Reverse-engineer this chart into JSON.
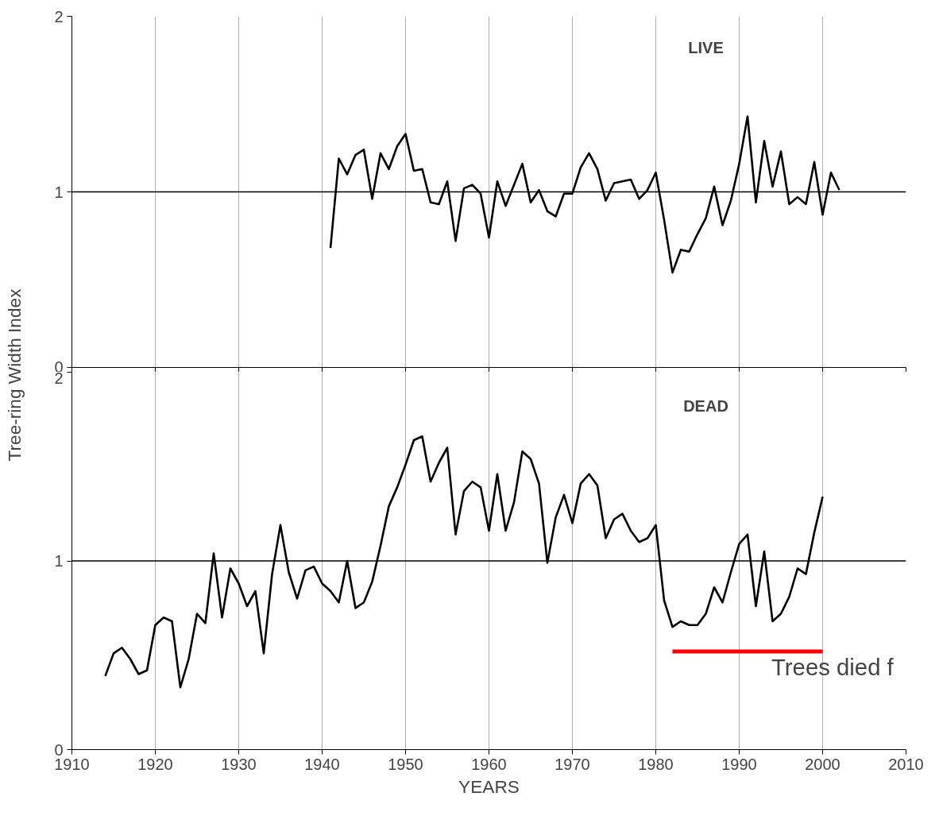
{
  "chart_data": [
    {
      "type": "line",
      "title": "LIVE",
      "ylabel": "Tree-ring Width Index",
      "xlim": [
        1910,
        2010
      ],
      "xticks": [
        1910,
        1920,
        1930,
        1940,
        1950,
        1960,
        1970,
        1980,
        1990,
        2000,
        2010
      ],
      "ylim": [
        0,
        2
      ],
      "yticks": [
        0,
        1,
        2
      ],
      "grid": "x",
      "tick_labels": "y",
      "ref_lines": [
        {
          "axis": "y",
          "value": 1
        }
      ],
      "x": [
        1941,
        1942,
        1943,
        1944,
        1945,
        1946,
        1947,
        1948,
        1949,
        1950,
        1951,
        1952,
        1953,
        1954,
        1955,
        1956,
        1957,
        1958,
        1959,
        1960,
        1961,
        1962,
        1963,
        1964,
        1965,
        1966,
        1967,
        1968,
        1969,
        1970,
        1971,
        1972,
        1973,
        1974,
        1975,
        1976,
        1977,
        1978,
        1979,
        1980,
        1981,
        1982,
        1983,
        1984,
        1985,
        1986,
        1987,
        1988,
        1989,
        1990,
        1991,
        1992,
        1993,
        1994,
        1995,
        1996,
        1997,
        1998,
        1999,
        2000,
        2001,
        2002
      ],
      "series": [
        {
          "color": "#000000",
          "values": [
            0.68,
            1.19,
            1.1,
            1.21,
            1.24,
            0.96,
            1.22,
            1.13,
            1.26,
            1.33,
            1.12,
            1.13,
            0.94,
            0.93,
            1.06,
            0.72,
            1.02,
            1.04,
            0.99,
            0.74,
            1.06,
            0.92,
            1.04,
            1.16,
            0.94,
            1.01,
            0.89,
            0.86,
            0.99,
            0.99,
            1.14,
            1.22,
            1.13,
            0.95,
            1.05,
            1.06,
            1.07,
            0.96,
            1.01,
            1.11,
            0.84,
            0.54,
            0.67,
            0.66,
            0.76,
            0.85,
            1.03,
            0.81,
            0.95,
            1.16,
            1.43,
            0.94,
            1.29,
            1.03,
            1.23,
            0.93,
            0.97,
            0.93,
            1.17,
            0.87,
            1.11,
            1.01
          ]
        }
      ]
    },
    {
      "type": "line",
      "title": "DEAD",
      "xlabel": "YEARS",
      "xlim": [
        1910,
        2010
      ],
      "xticks": [
        1910,
        1920,
        1930,
        1940,
        1950,
        1960,
        1970,
        1980,
        1990,
        2000,
        2010
      ],
      "ylim": [
        0,
        2
      ],
      "yticks": [
        0,
        1,
        2
      ],
      "grid": "x",
      "ref_lines": [
        {
          "axis": "y",
          "value": 1
        }
      ],
      "annotations": [
        "Trees died f"
      ],
      "x": [
        1914,
        1915,
        1916,
        1917,
        1918,
        1919,
        1920,
        1921,
        1922,
        1923,
        1924,
        1925,
        1926,
        1927,
        1928,
        1929,
        1930,
        1931,
        1932,
        1933,
        1934,
        1935,
        1936,
        1937,
        1938,
        1939,
        1940,
        1941,
        1942,
        1943,
        1944,
        1945,
        1946,
        1947,
        1948,
        1949,
        1950,
        1951,
        1952,
        1953,
        1954,
        1955,
        1956,
        1957,
        1958,
        1959,
        1960,
        1961,
        1962,
        1963,
        1964,
        1965,
        1966,
        1967,
        1968,
        1969,
        1970,
        1971,
        1972,
        1973,
        1974,
        1975,
        1976,
        1977,
        1978,
        1979,
        1980,
        1981,
        1982,
        1983,
        1984,
        1985,
        1986,
        1987,
        1988,
        1989,
        1990,
        1991,
        1992,
        1993,
        1994,
        1995,
        1996,
        1997,
        1998,
        1999,
        2000
      ],
      "series": [
        {
          "color": "#000000",
          "values": [
            0.39,
            0.51,
            0.54,
            0.48,
            0.4,
            0.42,
            0.66,
            0.7,
            0.68,
            0.33,
            0.48,
            0.72,
            0.67,
            1.04,
            0.7,
            0.96,
            0.88,
            0.76,
            0.84,
            0.51,
            0.93,
            1.19,
            0.94,
            0.8,
            0.95,
            0.97,
            0.88,
            0.84,
            0.78,
            1.0,
            0.75,
            0.78,
            0.89,
            1.08,
            1.29,
            1.39,
            1.51,
            1.64,
            1.66,
            1.42,
            1.52,
            1.6,
            1.14,
            1.37,
            1.42,
            1.39,
            1.16,
            1.46,
            1.16,
            1.31,
            1.58,
            1.54,
            1.41,
            0.99,
            1.23,
            1.35,
            1.2,
            1.41,
            1.46,
            1.4,
            1.12,
            1.22,
            1.25,
            1.16,
            1.1,
            1.12,
            1.19,
            0.79,
            0.65,
            0.68,
            0.66,
            0.66,
            0.72,
            0.86,
            0.78,
            0.94,
            1.09,
            1.14,
            0.76,
            1.05,
            0.68,
            0.72,
            0.81,
            0.96,
            0.93,
            1.15,
            1.34
          ]
        },
        {
          "color": "#ff0000",
          "x": [
            1982,
            2000
          ],
          "values": [
            0.52,
            0.52
          ]
        }
      ]
    }
  ]
}
